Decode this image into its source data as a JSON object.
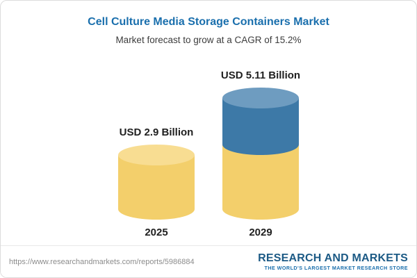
{
  "chart_data": {
    "type": "bar",
    "subtype": "cylinder",
    "title": "Cell Culture Media Storage Containers Market",
    "subtitle": "Market forecast to grow at a CAGR of 15.2%",
    "categories": [
      "2025",
      "2029"
    ],
    "values": [
      2.9,
      5.11
    ],
    "value_labels": [
      "USD 2.9 Billion",
      "USD 5.11 Billion"
    ],
    "unit": "USD Billion",
    "cagr_pct": 15.2,
    "ylim": [
      0,
      5.11
    ],
    "grid": false,
    "legend": false,
    "colors": {
      "base": "#f3cf6b",
      "base_top": "#f8dd92",
      "growth": "#3d79a7",
      "growth_top": "#6e9cc0"
    }
  },
  "theme": {
    "title_color": "#1a6fad",
    "text_color": "#1f1f1f",
    "url_color": "#8c8c8c",
    "logo_blue": "#1c5a85"
  },
  "footer": {
    "source_url": "https://www.researchandmarkets.com/reports/5986884",
    "logo": {
      "title": "RESEARCH AND MARKETS",
      "tagline": "THE WORLD'S LARGEST MARKET RESEARCH STORE"
    }
  }
}
